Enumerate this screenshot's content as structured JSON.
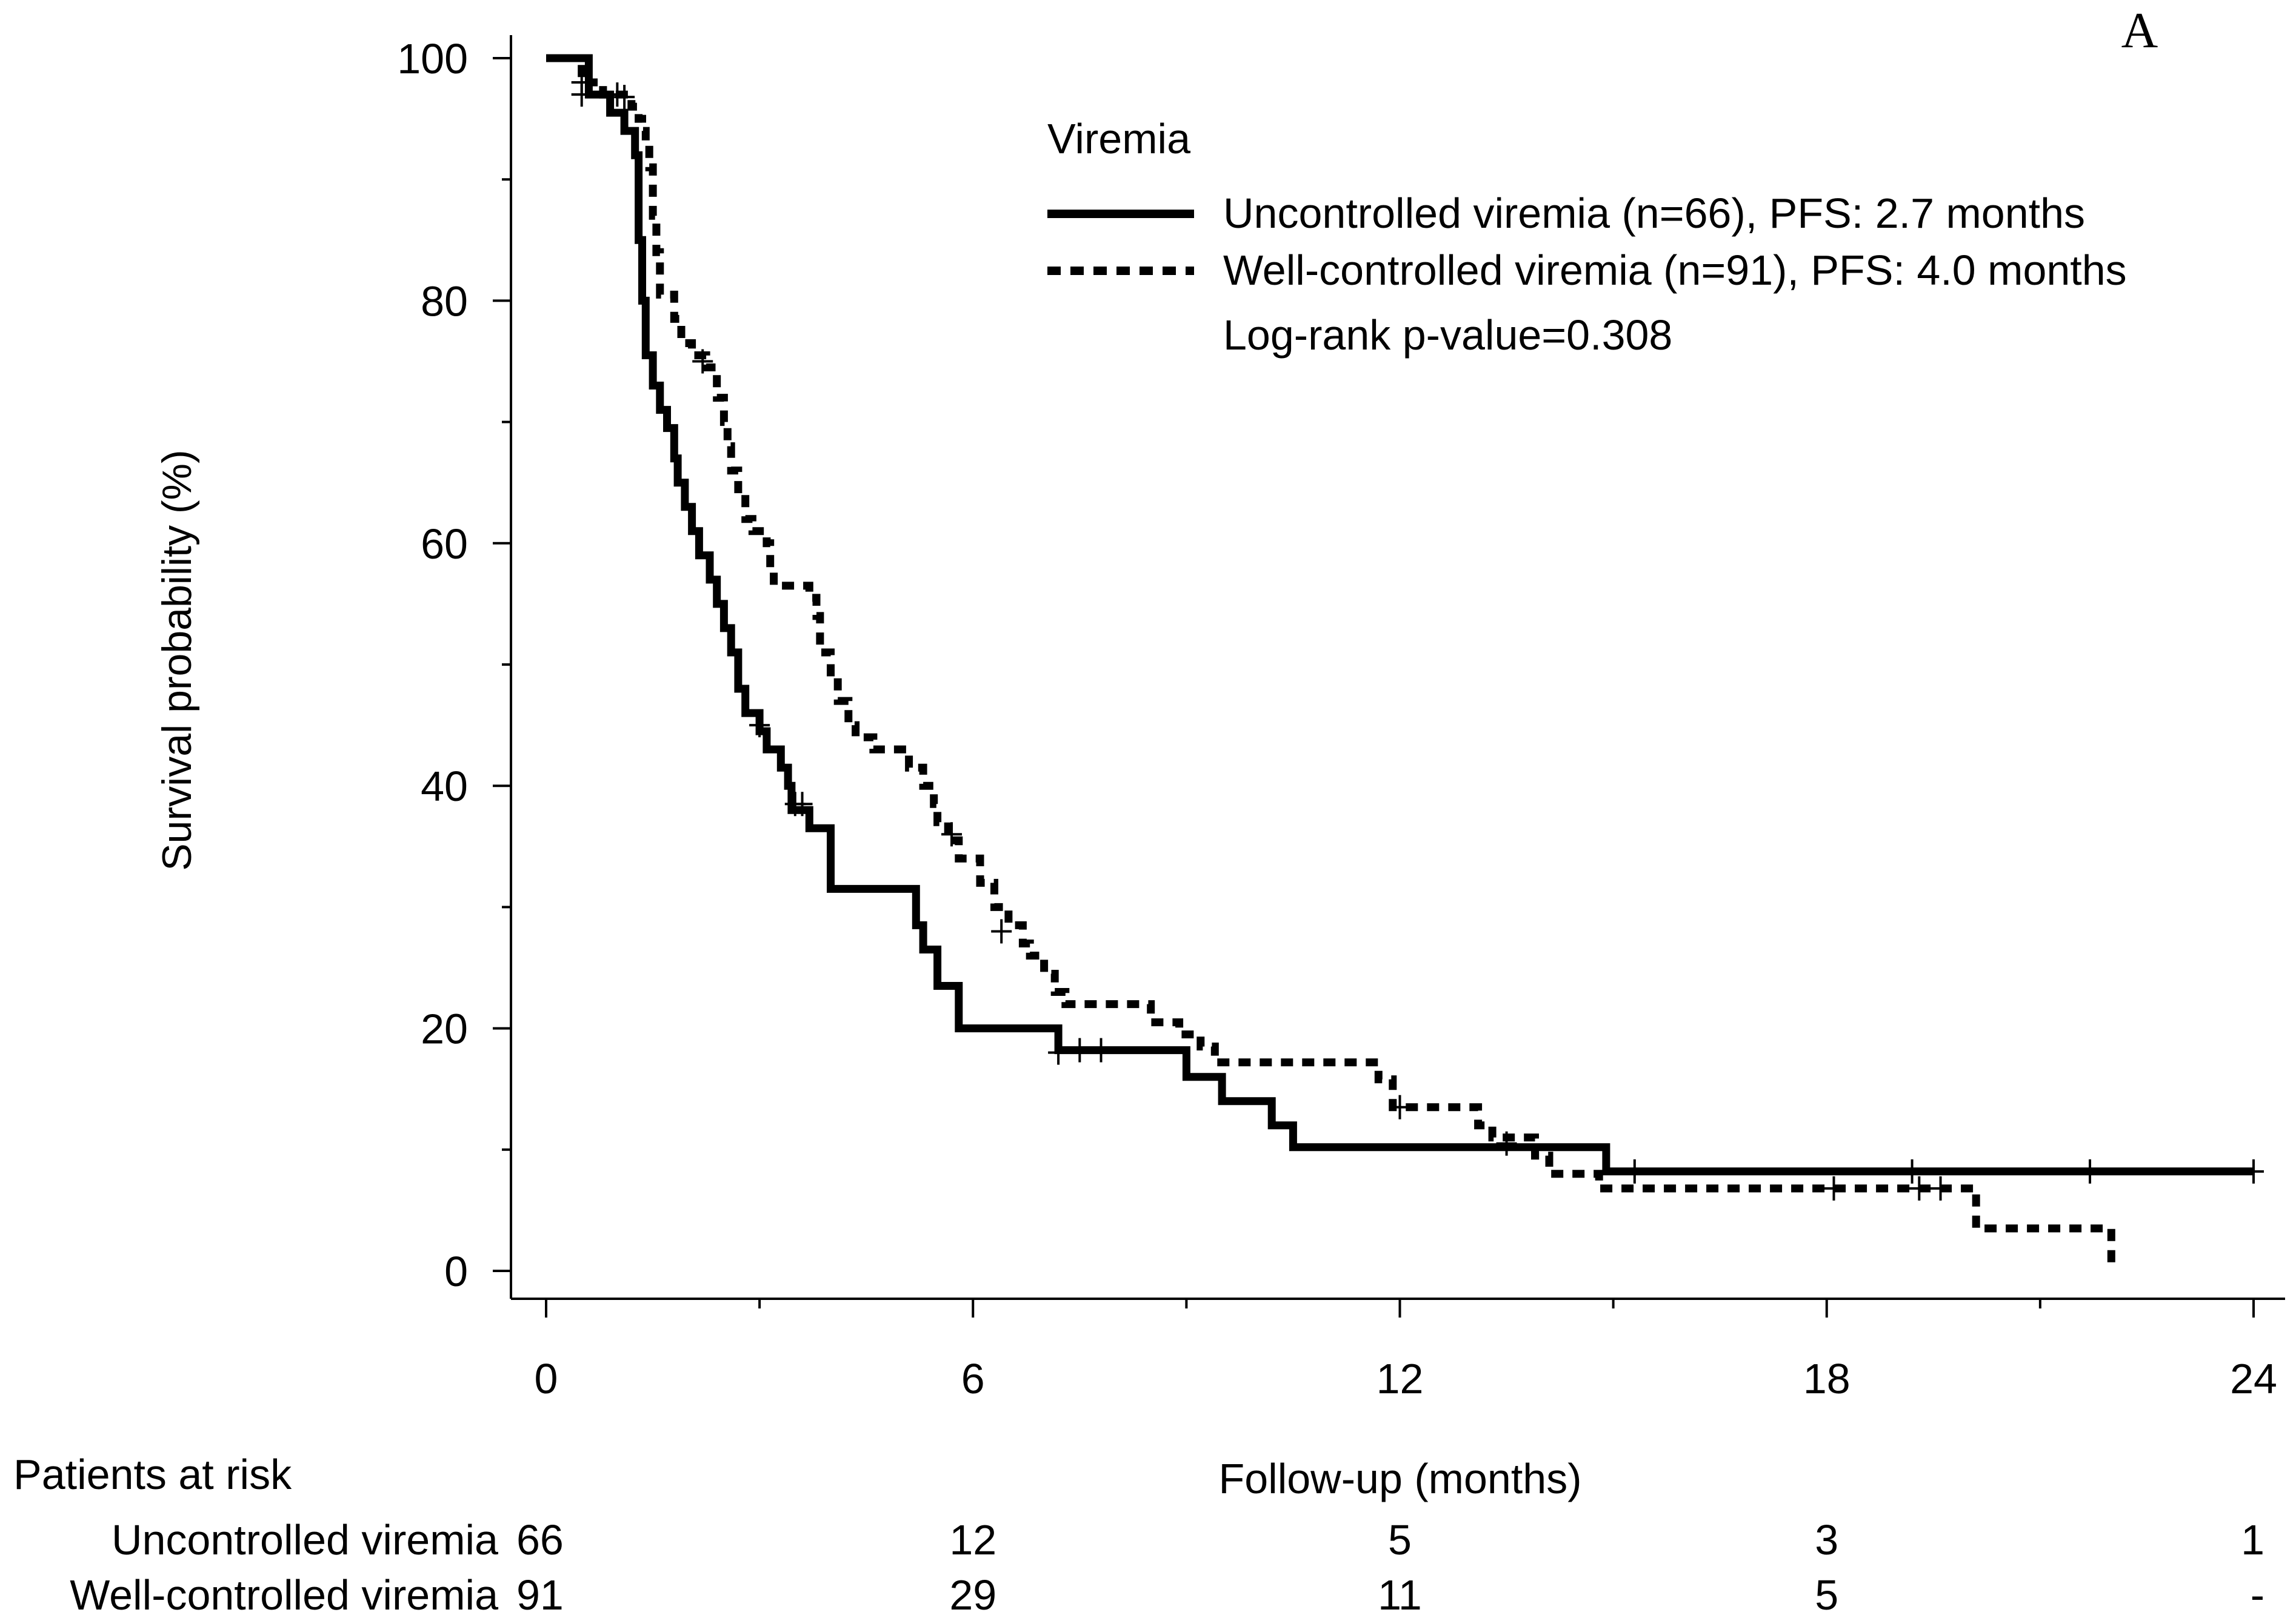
{
  "panel_label": "A",
  "colors": {
    "ink": "#000000",
    "background": "#ffffff"
  },
  "chart_data": {
    "type": "line",
    "subtype": "kaplan-meier step",
    "title": "",
    "xlabel": "Follow-up (months)",
    "ylabel": "Survival probability (%)",
    "xlim": [
      0,
      24
    ],
    "ylim": [
      0,
      100
    ],
    "xticks": [
      0,
      6,
      12,
      18,
      24
    ],
    "yticks": [
      0,
      20,
      40,
      60,
      80,
      100
    ],
    "legend": {
      "title": "Viremia",
      "position": "top-right",
      "entries": [
        {
          "label": "Uncontrolled viremia (n=66), PFS: 2.7 months",
          "style": "solid"
        },
        {
          "label": "Well-controlled viremia (n=91), PFS: 4.0 months",
          "style": "dashed"
        }
      ],
      "note": "Log-rank p-value=0.308"
    },
    "series": [
      {
        "name": "Uncontrolled viremia",
        "style": "solid",
        "points": [
          [
            0,
            100
          ],
          [
            0.6,
            100
          ],
          [
            0.6,
            97
          ],
          [
            0.9,
            97
          ],
          [
            0.9,
            95.5
          ],
          [
            1.1,
            95.5
          ],
          [
            1.1,
            94
          ],
          [
            1.25,
            94
          ],
          [
            1.25,
            92
          ],
          [
            1.3,
            92
          ],
          [
            1.3,
            85
          ],
          [
            1.35,
            85
          ],
          [
            1.35,
            80
          ],
          [
            1.4,
            80
          ],
          [
            1.4,
            75.5
          ],
          [
            1.5,
            75.5
          ],
          [
            1.5,
            73
          ],
          [
            1.6,
            73
          ],
          [
            1.6,
            71
          ],
          [
            1.7,
            71
          ],
          [
            1.7,
            69.5
          ],
          [
            1.8,
            69.5
          ],
          [
            1.8,
            67
          ],
          [
            1.85,
            67
          ],
          [
            1.85,
            65
          ],
          [
            1.95,
            65
          ],
          [
            1.95,
            63
          ],
          [
            2.05,
            63
          ],
          [
            2.05,
            61
          ],
          [
            2.15,
            61
          ],
          [
            2.15,
            59
          ],
          [
            2.3,
            59
          ],
          [
            2.3,
            57
          ],
          [
            2.4,
            57
          ],
          [
            2.4,
            55
          ],
          [
            2.5,
            55
          ],
          [
            2.5,
            53
          ],
          [
            2.6,
            53
          ],
          [
            2.6,
            51
          ],
          [
            2.7,
            51
          ],
          [
            2.7,
            48
          ],
          [
            2.8,
            48
          ],
          [
            2.8,
            46
          ],
          [
            3.0,
            46
          ],
          [
            3.0,
            44.5
          ],
          [
            3.1,
            44.5
          ],
          [
            3.1,
            43
          ],
          [
            3.3,
            43
          ],
          [
            3.3,
            41.5
          ],
          [
            3.4,
            41.5
          ],
          [
            3.4,
            40
          ],
          [
            3.45,
            40
          ],
          [
            3.45,
            38
          ],
          [
            3.7,
            38
          ],
          [
            3.7,
            36.5
          ],
          [
            4.0,
            36.5
          ],
          [
            4.0,
            31.5
          ],
          [
            5.2,
            31.5
          ],
          [
            5.2,
            28.5
          ],
          [
            5.3,
            28.5
          ],
          [
            5.3,
            26.5
          ],
          [
            5.5,
            26.5
          ],
          [
            5.5,
            23.5
          ],
          [
            5.8,
            23.5
          ],
          [
            5.8,
            20
          ],
          [
            7.2,
            20
          ],
          [
            7.2,
            18.2
          ],
          [
            9.0,
            18.2
          ],
          [
            9.0,
            16
          ],
          [
            9.5,
            16
          ],
          [
            9.5,
            14
          ],
          [
            10.2,
            14
          ],
          [
            10.2,
            12
          ],
          [
            10.5,
            12
          ],
          [
            10.5,
            10.2
          ],
          [
            14.9,
            10.2
          ],
          [
            14.9,
            8.2
          ],
          [
            24,
            8.2
          ]
        ],
        "censored": [
          [
            0.5,
            97
          ],
          [
            1.0,
            97
          ],
          [
            3.5,
            38.5
          ],
          [
            7.5,
            18.2
          ],
          [
            7.8,
            18.2
          ],
          [
            15.3,
            8.2
          ],
          [
            19.2,
            8.2
          ],
          [
            21.7,
            8.2
          ],
          [
            24,
            8.2
          ]
        ]
      },
      {
        "name": "Well-controlled viremia",
        "style": "dashed",
        "points": [
          [
            0,
            100
          ],
          [
            0.5,
            100
          ],
          [
            0.5,
            98
          ],
          [
            0.8,
            98
          ],
          [
            0.8,
            97
          ],
          [
            1.2,
            97
          ],
          [
            1.2,
            96
          ],
          [
            1.3,
            96
          ],
          [
            1.3,
            95
          ],
          [
            1.35,
            95
          ],
          [
            1.35,
            94
          ],
          [
            1.4,
            94
          ],
          [
            1.4,
            93
          ],
          [
            1.45,
            93
          ],
          [
            1.45,
            91
          ],
          [
            1.5,
            91
          ],
          [
            1.5,
            87
          ],
          [
            1.55,
            87
          ],
          [
            1.55,
            84
          ],
          [
            1.6,
            84
          ],
          [
            1.6,
            80.5
          ],
          [
            1.8,
            80.5
          ],
          [
            1.8,
            78.5
          ],
          [
            1.9,
            78.5
          ],
          [
            1.9,
            76.5
          ],
          [
            2.05,
            76.5
          ],
          [
            2.05,
            75.5
          ],
          [
            2.25,
            75.5
          ],
          [
            2.25,
            74.5
          ],
          [
            2.4,
            74.5
          ],
          [
            2.4,
            72
          ],
          [
            2.5,
            72
          ],
          [
            2.5,
            70
          ],
          [
            2.55,
            70
          ],
          [
            2.55,
            68
          ],
          [
            2.6,
            68
          ],
          [
            2.6,
            66
          ],
          [
            2.7,
            66
          ],
          [
            2.7,
            64
          ],
          [
            2.8,
            64
          ],
          [
            2.8,
            62
          ],
          [
            2.9,
            62
          ],
          [
            2.9,
            61
          ],
          [
            3.1,
            61
          ],
          [
            3.1,
            60
          ],
          [
            3.15,
            60
          ],
          [
            3.15,
            58
          ],
          [
            3.2,
            58
          ],
          [
            3.2,
            56.5
          ],
          [
            3.7,
            56.5
          ],
          [
            3.7,
            55.5
          ],
          [
            3.8,
            55.5
          ],
          [
            3.8,
            54
          ],
          [
            3.85,
            54
          ],
          [
            3.85,
            51
          ],
          [
            4.0,
            51
          ],
          [
            4.0,
            49
          ],
          [
            4.1,
            49
          ],
          [
            4.1,
            47
          ],
          [
            4.25,
            47
          ],
          [
            4.25,
            45
          ],
          [
            4.35,
            45
          ],
          [
            4.35,
            44
          ],
          [
            4.6,
            44
          ],
          [
            4.6,
            43
          ],
          [
            5.1,
            43
          ],
          [
            5.1,
            41.5
          ],
          [
            5.3,
            41.5
          ],
          [
            5.3,
            40
          ],
          [
            5.45,
            40
          ],
          [
            5.45,
            38.5
          ],
          [
            5.5,
            38.5
          ],
          [
            5.5,
            37
          ],
          [
            5.65,
            37
          ],
          [
            5.65,
            35.5
          ],
          [
            5.8,
            35.5
          ],
          [
            5.8,
            34
          ],
          [
            6.1,
            34
          ],
          [
            6.1,
            32
          ],
          [
            6.3,
            32
          ],
          [
            6.3,
            30
          ],
          [
            6.5,
            30
          ],
          [
            6.5,
            28.5
          ],
          [
            6.7,
            28.5
          ],
          [
            6.7,
            27
          ],
          [
            6.8,
            27
          ],
          [
            6.8,
            26
          ],
          [
            7.0,
            26
          ],
          [
            7.0,
            24.5
          ],
          [
            7.15,
            24.5
          ],
          [
            7.15,
            23
          ],
          [
            7.3,
            23
          ],
          [
            7.3,
            22
          ],
          [
            8.5,
            22
          ],
          [
            8.5,
            20.5
          ],
          [
            8.9,
            20.5
          ],
          [
            8.9,
            19.5
          ],
          [
            9.2,
            19.5
          ],
          [
            9.2,
            18.5
          ],
          [
            9.4,
            18.5
          ],
          [
            9.4,
            17.2
          ],
          [
            11.7,
            17.2
          ],
          [
            11.7,
            15.8
          ],
          [
            11.9,
            15.8
          ],
          [
            11.9,
            13.5
          ],
          [
            13.1,
            13.5
          ],
          [
            13.1,
            12
          ],
          [
            13.3,
            12
          ],
          [
            13.3,
            11
          ],
          [
            13.9,
            11
          ],
          [
            13.9,
            9.5
          ],
          [
            14.1,
            9.5
          ],
          [
            14.1,
            8
          ],
          [
            14.8,
            8
          ],
          [
            14.8,
            6.8
          ],
          [
            20.1,
            6.8
          ],
          [
            20.1,
            3.5
          ],
          [
            22.0,
            3.5
          ],
          [
            22.0,
            0.5
          ]
        ],
        "censored": [
          [
            0.5,
            98
          ],
          [
            1.1,
            96.8
          ],
          [
            2.2,
            75
          ],
          [
            3.0,
            45
          ],
          [
            3.6,
            38.5
          ],
          [
            5.7,
            36
          ],
          [
            6.4,
            28
          ],
          [
            7.2,
            18
          ],
          [
            12.0,
            13.5
          ],
          [
            13.5,
            10.5
          ],
          [
            18.1,
            6.8
          ],
          [
            19.3,
            6.8
          ],
          [
            19.6,
            6.8
          ]
        ]
      }
    ],
    "risk_table": {
      "title": "Patients at risk",
      "times": [
        0,
        6,
        12,
        18,
        24
      ],
      "rows": [
        {
          "label": "Uncontrolled viremia",
          "counts": [
            "66",
            "12",
            "5",
            "3",
            "1"
          ]
        },
        {
          "label": "Well-controlled viremia",
          "counts": [
            "91",
            "29",
            "11",
            "5",
            "-"
          ]
        }
      ]
    }
  }
}
